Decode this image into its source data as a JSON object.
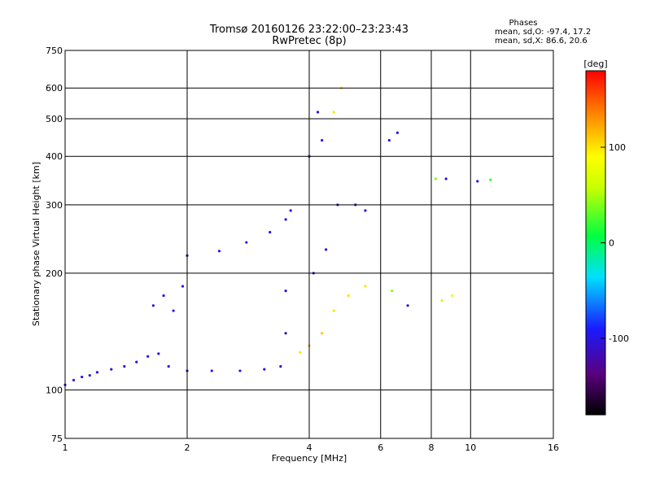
{
  "header": {
    "title_line1": "Tromsø 20160126 23:22:00–23:23:43",
    "title_line2": "RwPretec (8p)"
  },
  "stats": {
    "heading": "Phases",
    "line_o": "mean, sd,O: -97.4, 17.2",
    "line_x": "mean, sd,X:  86.6, 20.6"
  },
  "colorbar": {
    "unit_label": "[deg]",
    "ticks": [
      {
        "label": "100",
        "value": 100
      },
      {
        "label": "0",
        "value": 0
      },
      {
        "label": "-100",
        "value": -100
      }
    ],
    "range": [
      -180,
      180
    ]
  },
  "chart_data": {
    "type": "scatter",
    "title": "Tromsø 20160126 23:22:00–23:23:43",
    "subtitle": "RwPretec (8p)",
    "xlabel": "Frequency [MHz]",
    "ylabel": "Stationary phase Virtual Height [km]",
    "x_scale": "log",
    "y_scale": "log",
    "xlim": [
      1,
      16
    ],
    "ylim": [
      75,
      750
    ],
    "x_ticks": [
      1,
      2,
      4,
      6,
      8,
      10,
      16
    ],
    "x_tick_labels": [
      "1",
      "2",
      "4",
      "6",
      "8",
      "10",
      "16"
    ],
    "y_ticks": [
      75,
      100,
      200,
      300,
      400,
      500,
      600,
      750
    ],
    "y_tick_labels": [
      "75",
      "100",
      "200",
      "300",
      "400",
      "500",
      "600",
      "750"
    ],
    "grid": true,
    "color_encoding": "phase [deg]",
    "series": [
      {
        "points": [
          {
            "x": 1.0,
            "y": 103,
            "phase": -100
          },
          {
            "x": 1.05,
            "y": 106,
            "phase": -100
          },
          {
            "x": 1.1,
            "y": 108,
            "phase": -100
          },
          {
            "x": 1.15,
            "y": 109,
            "phase": -100
          },
          {
            "x": 1.2,
            "y": 111,
            "phase": -100
          },
          {
            "x": 1.3,
            "y": 113,
            "phase": -100
          },
          {
            "x": 1.4,
            "y": 115,
            "phase": -100
          },
          {
            "x": 1.5,
            "y": 118,
            "phase": -100
          },
          {
            "x": 1.6,
            "y": 122,
            "phase": -100
          },
          {
            "x": 1.7,
            "y": 124,
            "phase": -100
          },
          {
            "x": 1.8,
            "y": 115,
            "phase": -100
          },
          {
            "x": 2.0,
            "y": 112,
            "phase": -100
          },
          {
            "x": 2.3,
            "y": 112,
            "phase": -100
          },
          {
            "x": 2.7,
            "y": 112,
            "phase": -100
          },
          {
            "x": 3.1,
            "y": 113,
            "phase": -100
          },
          {
            "x": 3.4,
            "y": 115,
            "phase": -110
          },
          {
            "x": 1.65,
            "y": 165,
            "phase": -100
          },
          {
            "x": 1.75,
            "y": 175,
            "phase": -100
          },
          {
            "x": 1.85,
            "y": 160,
            "phase": -100
          },
          {
            "x": 1.95,
            "y": 185,
            "phase": -100
          },
          {
            "x": 2.0,
            "y": 222,
            "phase": -100
          },
          {
            "x": 2.4,
            "y": 228,
            "phase": -100
          },
          {
            "x": 2.8,
            "y": 240,
            "phase": -100
          },
          {
            "x": 3.2,
            "y": 255,
            "phase": -100
          },
          {
            "x": 3.5,
            "y": 275,
            "phase": -100
          },
          {
            "x": 3.6,
            "y": 290,
            "phase": -100
          },
          {
            "x": 3.5,
            "y": 180,
            "phase": -110
          },
          {
            "x": 3.5,
            "y": 140,
            "phase": -110
          },
          {
            "x": 3.8,
            "y": 125,
            "phase": 100
          },
          {
            "x": 4.0,
            "y": 130,
            "phase": 110
          },
          {
            "x": 4.3,
            "y": 140,
            "phase": 110
          },
          {
            "x": 4.6,
            "y": 160,
            "phase": 100
          },
          {
            "x": 5.0,
            "y": 175,
            "phase": 100
          },
          {
            "x": 5.5,
            "y": 185,
            "phase": 100
          },
          {
            "x": 4.1,
            "y": 200,
            "phase": -100
          },
          {
            "x": 4.4,
            "y": 230,
            "phase": -100
          },
          {
            "x": 4.7,
            "y": 300,
            "phase": -100
          },
          {
            "x": 5.2,
            "y": 300,
            "phase": -100
          },
          {
            "x": 5.5,
            "y": 290,
            "phase": -100
          },
          {
            "x": 4.0,
            "y": 400,
            "phase": -100
          },
          {
            "x": 4.2,
            "y": 520,
            "phase": -100
          },
          {
            "x": 4.3,
            "y": 440,
            "phase": -100
          },
          {
            "x": 4.6,
            "y": 520,
            "phase": 100
          },
          {
            "x": 4.8,
            "y": 600,
            "phase": 100
          },
          {
            "x": 6.3,
            "y": 440,
            "phase": -100
          },
          {
            "x": 6.6,
            "y": 460,
            "phase": -100
          },
          {
            "x": 6.4,
            "y": 180,
            "phase": 40
          },
          {
            "x": 7.0,
            "y": 165,
            "phase": -100
          },
          {
            "x": 8.2,
            "y": 350,
            "phase": 40
          },
          {
            "x": 8.7,
            "y": 350,
            "phase": -110
          },
          {
            "x": 10.4,
            "y": 345,
            "phase": -100
          },
          {
            "x": 11.2,
            "y": 348,
            "phase": 20
          },
          {
            "x": 8.5,
            "y": 170,
            "phase": 60
          },
          {
            "x": 9.0,
            "y": 175,
            "phase": 80
          }
        ]
      }
    ]
  }
}
